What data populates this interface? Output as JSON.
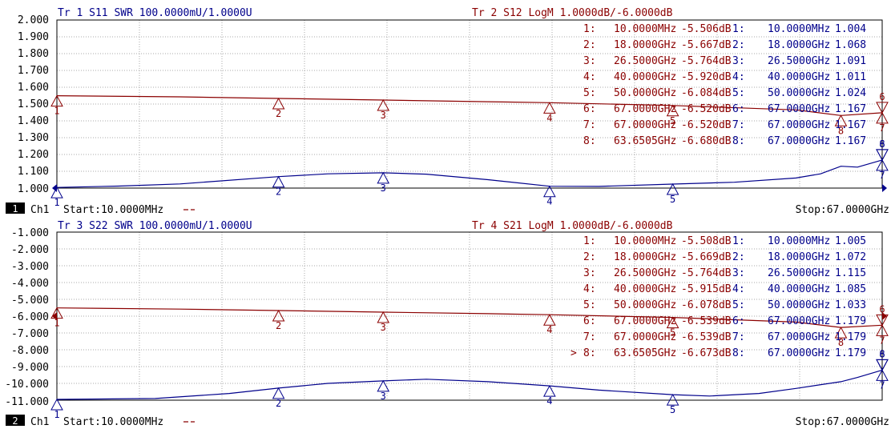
{
  "colors": {
    "blue": "#00008b",
    "red": "#8b0000",
    "grid": "#a8a8a8",
    "frame": "#000000",
    "ytext": "#000000"
  },
  "chart_data": [
    {
      "type": "line",
      "channel_number": "1",
      "channel_label": "Ch1",
      "start_label": "Start:10.0000MHz",
      "stop_label": "Stop:67.0000GHz",
      "x_range_ghz": [
        0.01,
        67
      ],
      "ylim": [
        1.0,
        2.0
      ],
      "yticks": [
        "2.000",
        "1.900",
        "1.800",
        "1.700",
        "1.600",
        "1.500",
        "1.400",
        "1.300",
        "1.200",
        "1.100",
        "1.000"
      ],
      "traces": [
        {
          "header": "Tr 1  S11 SWR 100.0000mU/1.0000U",
          "color": "blue",
          "ref_side": "left",
          "scale": {
            "ref": 1.0,
            "per_div": 0.1
          },
          "curve": [
            [
              0.01,
              1.004
            ],
            [
              5,
              1.012
            ],
            [
              10,
              1.025
            ],
            [
              18,
              1.068
            ],
            [
              22,
              1.085
            ],
            [
              26.5,
              1.091
            ],
            [
              30,
              1.083
            ],
            [
              35,
              1.05
            ],
            [
              40,
              1.011
            ],
            [
              44,
              1.01
            ],
            [
              50,
              1.024
            ],
            [
              55,
              1.035
            ],
            [
              60,
              1.06
            ],
            [
              62,
              1.085
            ],
            [
              63.65,
              1.13
            ],
            [
              65,
              1.125
            ],
            [
              67,
              1.167
            ]
          ],
          "markers": [
            {
              "n": "1",
              "f": 0.01,
              "v": 1.004
            },
            {
              "n": "2",
              "f": 18,
              "v": 1.068
            },
            {
              "n": "3",
              "f": 26.5,
              "v": 1.091
            },
            {
              "n": "4",
              "f": 40,
              "v": 1.011
            },
            {
              "n": "5",
              "f": 50,
              "v": 1.024
            },
            {
              "n": "6",
              "f": 67,
              "v": 1.167
            },
            {
              "n": "7",
              "f": 67,
              "v": 1.167
            },
            {
              "n": "8",
              "f": 67,
              "v": 1.167
            }
          ],
          "table": [
            {
              "n": "1:",
              "f": "10.0000MHz",
              "v": "1.004"
            },
            {
              "n": "2:",
              "f": "18.0000GHz",
              "v": "1.068"
            },
            {
              "n": "3:",
              "f": "26.5000GHz",
              "v": "1.091"
            },
            {
              "n": "4:",
              "f": "40.0000GHz",
              "v": "1.011"
            },
            {
              "n": "5:",
              "f": "50.0000GHz",
              "v": "1.024"
            },
            {
              "n": "6:",
              "f": "67.0000GHz",
              "v": "1.167"
            },
            {
              "n": "7:",
              "f": "67.0000GHz",
              "v": "1.167"
            },
            {
              "n": "8:",
              "f": "67.0000GHz",
              "v": "1.167"
            }
          ]
        },
        {
          "header": "Tr 2  S12 LogM 1.0000dB/-6.0000dB",
          "color": "red",
          "ref_side": "none",
          "scale": {
            "ref": -6.0,
            "per_div": 1.0
          },
          "curve": [
            [
              0.01,
              -5.506
            ],
            [
              10,
              -5.57
            ],
            [
              18,
              -5.667
            ],
            [
              26.5,
              -5.764
            ],
            [
              35,
              -5.86
            ],
            [
              40,
              -5.92
            ],
            [
              50,
              -6.084
            ],
            [
              60,
              -6.35
            ],
            [
              63.65,
              -6.68
            ],
            [
              67,
              -6.52
            ]
          ],
          "markers": [
            {
              "n": "1",
              "f": 0.01,
              "v": -5.506
            },
            {
              "n": "2",
              "f": 18,
              "v": -5.667
            },
            {
              "n": "3",
              "f": 26.5,
              "v": -5.764
            },
            {
              "n": "4",
              "f": 40,
              "v": -5.92
            },
            {
              "n": "5",
              "f": 50,
              "v": -6.084
            },
            {
              "n": "6",
              "f": 67,
              "v": -6.52
            },
            {
              "n": "7",
              "f": 67,
              "v": -6.52
            },
            {
              "n": "8",
              "f": 63.6505,
              "v": -6.68
            }
          ],
          "table": [
            {
              "n": "1:",
              "f": "10.0000MHz",
              "v": "-5.506dB"
            },
            {
              "n": "2:",
              "f": "18.0000GHz",
              "v": "-5.667dB"
            },
            {
              "n": "3:",
              "f": "26.5000GHz",
              "v": "-5.764dB"
            },
            {
              "n": "4:",
              "f": "40.0000GHz",
              "v": "-5.920dB"
            },
            {
              "n": "5:",
              "f": "50.0000GHz",
              "v": "-6.084dB"
            },
            {
              "n": "6:",
              "f": "67.0000GHz",
              "v": "-6.520dB"
            },
            {
              "n": "7:",
              "f": "67.0000GHz",
              "v": "-6.520dB"
            },
            {
              "n": "8:",
              "f": "63.6505GHz",
              "v": "-6.680dB"
            }
          ]
        }
      ]
    },
    {
      "type": "line",
      "channel_number": "2",
      "channel_label": "Ch1",
      "start_label": "Start:10.0000MHz",
      "stop_label": "Stop:67.0000GHz",
      "x_range_ghz": [
        0.01,
        67
      ],
      "ylim": [
        -11.0,
        -1.0
      ],
      "yticks": [
        "-1.000",
        "-2.000",
        "-3.000",
        "-4.000",
        "-5.000",
        "-6.000",
        "-7.000",
        "-8.000",
        "-9.000",
        "-10.000",
        "-11.000"
      ],
      "traces": [
        {
          "header": "Tr 3  S22 SWR 100.0000mU/1.0000U",
          "color": "blue",
          "ref_side": "none",
          "scale": {
            "ref": 1.0,
            "per_div": 0.1
          },
          "curve": [
            [
              0.01,
              1.005
            ],
            [
              8,
              1.01
            ],
            [
              14,
              1.04
            ],
            [
              18,
              1.072
            ],
            [
              22,
              1.1
            ],
            [
              26.5,
              1.115
            ],
            [
              30,
              1.125
            ],
            [
              35,
              1.11
            ],
            [
              40,
              1.085
            ],
            [
              44,
              1.06
            ],
            [
              50,
              1.033
            ],
            [
              53,
              1.025
            ],
            [
              57,
              1.04
            ],
            [
              60,
              1.07
            ],
            [
              63.65,
              1.11
            ],
            [
              65,
              1.135
            ],
            [
              67,
              1.179
            ]
          ],
          "markers": [
            {
              "n": "1",
              "f": 0.01,
              "v": 1.005
            },
            {
              "n": "2",
              "f": 18,
              "v": 1.072
            },
            {
              "n": "3",
              "f": 26.5,
              "v": 1.115
            },
            {
              "n": "4",
              "f": 40,
              "v": 1.085
            },
            {
              "n": "5",
              "f": 50,
              "v": 1.033
            },
            {
              "n": "6",
              "f": 67,
              "v": 1.179
            },
            {
              "n": "7",
              "f": 67,
              "v": 1.179
            },
            {
              "n": "8",
              "f": 67,
              "v": 1.179
            }
          ],
          "table": [
            {
              "n": "1:",
              "f": "10.0000MHz",
              "v": "1.005"
            },
            {
              "n": "2:",
              "f": "18.0000GHz",
              "v": "1.072"
            },
            {
              "n": "3:",
              "f": "26.5000GHz",
              "v": "1.115"
            },
            {
              "n": "4:",
              "f": "40.0000GHz",
              "v": "1.085"
            },
            {
              "n": "5:",
              "f": "50.0000GHz",
              "v": "1.033"
            },
            {
              "n": "6:",
              "f": "67.0000GHz",
              "v": "1.179"
            },
            {
              "n": "7:",
              "f": "67.0000GHz",
              "v": "1.179"
            },
            {
              "n": "8:",
              "f": "67.0000GHz",
              "v": "1.179"
            }
          ]
        },
        {
          "header": "Tr 4  S21 LogM 1.0000dB/-6.0000dB",
          "color": "red",
          "ref_side": "both",
          "scale": {
            "ref": -6.0,
            "per_div": 1.0
          },
          "curve": [
            [
              0.01,
              -5.508
            ],
            [
              10,
              -5.58
            ],
            [
              18,
              -5.669
            ],
            [
              26.5,
              -5.764
            ],
            [
              35,
              -5.85
            ],
            [
              40,
              -5.915
            ],
            [
              50,
              -6.078
            ],
            [
              60,
              -6.35
            ],
            [
              63.65,
              -6.673
            ],
            [
              67,
              -6.539
            ]
          ],
          "markers": [
            {
              "n": "1",
              "f": 0.01,
              "v": -5.508
            },
            {
              "n": "2",
              "f": 18,
              "v": -5.669
            },
            {
              "n": "3",
              "f": 26.5,
              "v": -5.764
            },
            {
              "n": "4",
              "f": 40,
              "v": -5.915
            },
            {
              "n": "5",
              "f": 50,
              "v": -6.078
            },
            {
              "n": "6",
              "f": 67,
              "v": -6.539
            },
            {
              "n": "7",
              "f": 67,
              "v": -6.539
            },
            {
              "n": "8",
              "f": 63.6505,
              "v": -6.673
            }
          ],
          "active_marker_symbol": ">",
          "table": [
            {
              "n": "1:",
              "f": "10.0000MHz",
              "v": "-5.508dB"
            },
            {
              "n": "2:",
              "f": "18.0000GHz",
              "v": "-5.669dB"
            },
            {
              "n": "3:",
              "f": "26.5000GHz",
              "v": "-5.764dB"
            },
            {
              "n": "4:",
              "f": "40.0000GHz",
              "v": "-5.915dB"
            },
            {
              "n": "5:",
              "f": "50.0000GHz",
              "v": "-6.078dB"
            },
            {
              "n": "6:",
              "f": "67.0000GHz",
              "v": "-6.539dB"
            },
            {
              "n": "7:",
              "f": "67.0000GHz",
              "v": "-6.539dB"
            },
            {
              "n": "8:",
              "f": "63.6505GHz",
              "v": "-6.673dB"
            }
          ]
        }
      ]
    }
  ]
}
